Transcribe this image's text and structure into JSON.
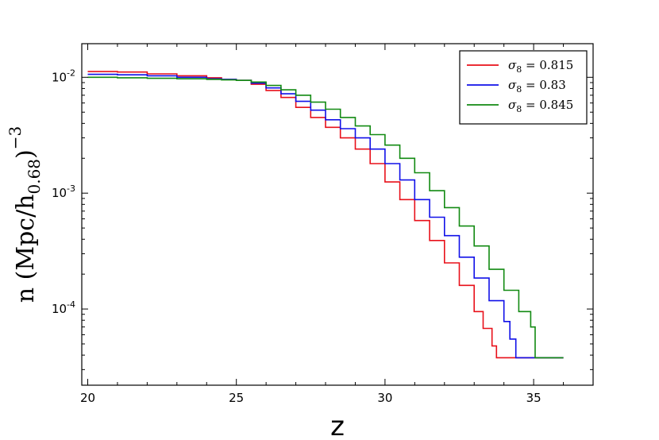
{
  "chart_data": {
    "type": "line",
    "xlabel": "z",
    "ylabel": "n (Mpc/h",
    "ylabel_sub": "0.68",
    "ylabel_close": ")",
    "ylabel_exp": "−3",
    "xlim": [
      19.8,
      37.0
    ],
    "ylim": [
      2.2e-05,
      0.0195
    ],
    "yscale": "log",
    "xticks": [
      {
        "value": 20,
        "label": "20"
      },
      {
        "value": 25,
        "label": "25"
      },
      {
        "value": 30,
        "label": "30"
      },
      {
        "value": 35,
        "label": "35"
      }
    ],
    "yticks": [
      {
        "value": 0.01,
        "base": "10",
        "exp": "-2"
      },
      {
        "value": 0.001,
        "base": "10",
        "exp": "-3"
      },
      {
        "value": 0.0001,
        "base": "10",
        "exp": "-4"
      }
    ],
    "grid": false,
    "legend_position": "top-right",
    "series": [
      {
        "name": "σ8 = 0.815",
        "legend_symbol": "σ",
        "legend_sub": "8",
        "legend_value": " = 0.815",
        "color": "#e8101a",
        "x": [
          20,
          21,
          22,
          23,
          24,
          24.5,
          25,
          25.5,
          26,
          26.5,
          27,
          27.5,
          28,
          28.5,
          29,
          29.5,
          30,
          30.5,
          31,
          31.5,
          32,
          32.5,
          33,
          33.3,
          33.6,
          33.75,
          34,
          35,
          36
        ],
        "y": [
          0.0112,
          0.0111,
          0.0107,
          0.0103,
          0.0099,
          0.0096,
          0.0094,
          0.0087,
          0.0077,
          0.0067,
          0.0055,
          0.0045,
          0.0037,
          0.003,
          0.0024,
          0.0018,
          0.00125,
          0.00088,
          0.00058,
          0.00039,
          0.00025,
          0.00016,
          9.5e-05,
          6.8e-05,
          4.8e-05,
          3.8e-05,
          3.8e-05,
          3.8e-05,
          3.8e-05
        ]
      },
      {
        "name": "σ8 = 0.83",
        "legend_symbol": "σ",
        "legend_sub": "8",
        "legend_value": " = 0.83",
        "color": "#1010e8",
        "x": [
          20,
          21,
          22,
          23,
          24,
          24.5,
          25,
          25.5,
          26,
          26.5,
          27,
          27.5,
          28,
          28.5,
          29,
          29.5,
          30,
          30.5,
          31,
          31.5,
          32,
          32.5,
          33,
          33.5,
          34,
          34.2,
          34.4,
          35,
          36
        ],
        "y": [
          0.0106,
          0.0105,
          0.0103,
          0.01,
          0.0097,
          0.0096,
          0.0094,
          0.0089,
          0.0081,
          0.0072,
          0.0062,
          0.0052,
          0.0043,
          0.0036,
          0.003,
          0.0024,
          0.0018,
          0.0013,
          0.00088,
          0.00062,
          0.00043,
          0.00028,
          0.000185,
          0.000118,
          7.8e-05,
          5.5e-05,
          3.8e-05,
          3.8e-05,
          3.8e-05
        ]
      },
      {
        "name": "σ8 = 0.845",
        "legend_symbol": "σ",
        "legend_sub": "8",
        "legend_value": " = 0.845",
        "color": "#128a12",
        "x": [
          20,
          21,
          22,
          23,
          24,
          24.5,
          25,
          25.5,
          26,
          26.5,
          27,
          27.5,
          28,
          28.5,
          29,
          29.5,
          30,
          30.5,
          31,
          31.5,
          32,
          32.5,
          33,
          33.5,
          34,
          34.5,
          34.9,
          35.05,
          36
        ],
        "y": [
          0.01,
          0.0099,
          0.0098,
          0.0097,
          0.0096,
          0.0095,
          0.0094,
          0.0091,
          0.0085,
          0.0078,
          0.007,
          0.0061,
          0.0053,
          0.0045,
          0.0038,
          0.0032,
          0.0026,
          0.002,
          0.0015,
          0.00105,
          0.00075,
          0.00052,
          0.00035,
          0.00022,
          0.000145,
          9.5e-05,
          7e-05,
          3.8e-05,
          3.8e-05
        ]
      }
    ]
  }
}
